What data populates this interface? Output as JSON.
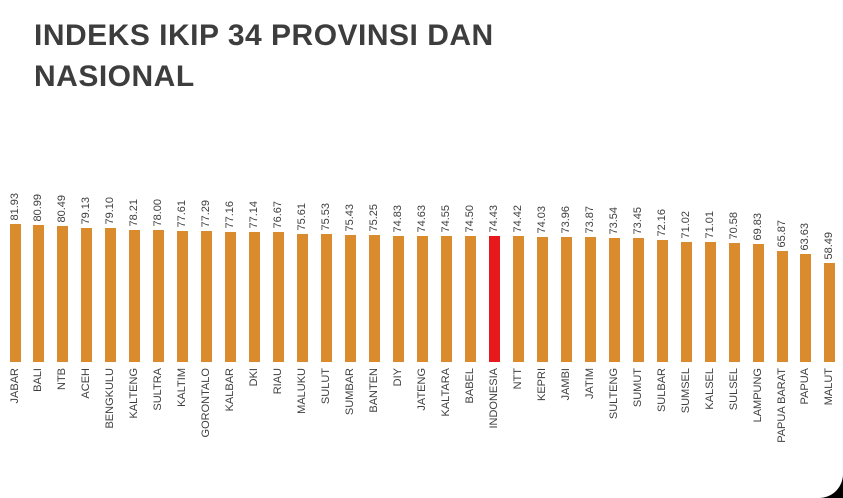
{
  "chart_data": {
    "type": "bar",
    "title": "INDEKS IKIP 34 PROVINSI DAN NASIONAL",
    "categories": [
      "JABAR",
      "BALI",
      "NTB",
      "ACEH",
      "BENGKULU",
      "KALTENG",
      "SULTRA",
      "KALTIM",
      "GORONTALO",
      "KALBAR",
      "DKI",
      "RIAU",
      "MALUKU",
      "SULUT",
      "SUMBAR",
      "BANTEN",
      "DIY",
      "JATENG",
      "KALTARA",
      "BABEL",
      "INDONESIA",
      "NTT",
      "KEPRI",
      "JAMBI",
      "JATIM",
      "SULTENG",
      "SUMUT",
      "SULBAR",
      "SUMSEL",
      "KALSEL",
      "SULSEL",
      "LAMPUNG",
      "PAPUA BARAT",
      "PAPUA",
      "MALUT"
    ],
    "values": [
      81.93,
      80.99,
      80.49,
      79.13,
      79.1,
      78.21,
      78.0,
      77.61,
      77.29,
      77.16,
      77.14,
      76.67,
      75.61,
      75.53,
      75.43,
      75.25,
      74.83,
      74.63,
      74.55,
      74.5,
      74.43,
      74.42,
      74.03,
      73.96,
      73.87,
      73.54,
      73.45,
      72.16,
      71.02,
      71.01,
      70.58,
      69.83,
      65.87,
      63.63,
      58.49
    ],
    "value_labels": [
      "81.93",
      "80.99",
      "80.49",
      "79.13",
      "79.10",
      "78.21",
      "78.00",
      "77.61",
      "77.29",
      "77.16",
      "77.14",
      "76.67",
      "75.61",
      "75.53",
      "75.43",
      "75.25",
      "74.83",
      "74.63",
      "74.55",
      "74.50",
      "74.43",
      "74.42",
      "74.03",
      "73.96",
      "73.87",
      "73.54",
      "73.45",
      "72.16",
      "71.02",
      "71.01",
      "70.58",
      "69.83",
      "65.87",
      "63.63",
      "58.49"
    ],
    "highlight_category": "INDONESIA",
    "highlight_index": 20,
    "bar_color": "#d98b2d",
    "highlight_color": "#e8191d",
    "label_color": "#3f3f3f",
    "ylim": [
      0,
      85
    ],
    "grid": false,
    "legend": false,
    "value_labels_rotated": true,
    "category_labels_rotated": true
  }
}
